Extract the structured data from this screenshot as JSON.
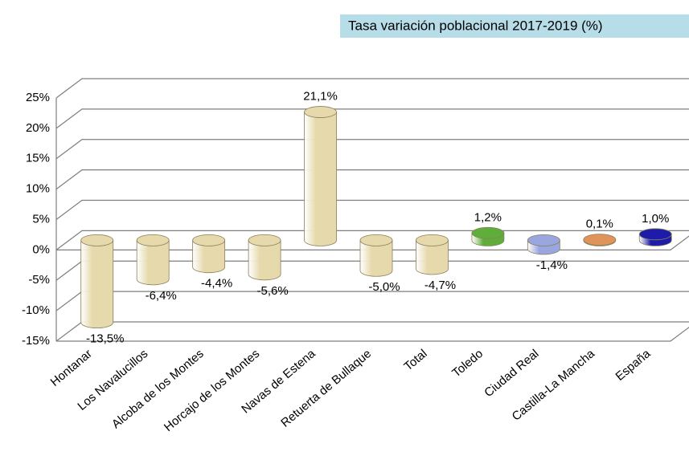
{
  "chart_data": {
    "type": "bar",
    "title": "Tasa variación poblacional 2017-2019 (%)",
    "categories": [
      "Hontanar",
      "Los Navalucillos",
      "Alcoba de los Montes",
      "Horcajo de los Montes",
      "Navas de Estena",
      "Retuerta de Bullaque",
      "Total",
      "Toledo",
      "Ciudad Real",
      "Castilla-La Mancha",
      "España"
    ],
    "values": [
      -13.5,
      -6.4,
      -4.4,
      -5.6,
      21.1,
      -5.0,
      -4.7,
      1.2,
      -1.4,
      0.1,
      1.0
    ],
    "value_labels": [
      "-13,5%",
      "-6,4%",
      "-4,4%",
      "-5,6%",
      "21,1%",
      "-5,0%",
      "-4,7%",
      "1,2%",
      "-1,4%",
      "0,1%",
      "1,0%"
    ],
    "colors": [
      "#e6d9ac",
      "#e6d9ac",
      "#e6d9ac",
      "#e6d9ac",
      "#e6d9ac",
      "#e6d9ac",
      "#e6d9ac",
      "#5fae3c",
      "#9aa6e0",
      "#e0935a",
      "#1c1ca8"
    ],
    "ylim": [
      -15,
      25
    ],
    "yticks": [
      {
        "value": -15,
        "label": "-15%"
      },
      {
        "value": -10,
        "label": "-10%"
      },
      {
        "value": -5,
        "label": "-5%"
      },
      {
        "value": 0,
        "label": "0%"
      },
      {
        "value": 5,
        "label": "5%"
      },
      {
        "value": 10,
        "label": "10%"
      },
      {
        "value": 15,
        "label": "15%"
      },
      {
        "value": 20,
        "label": "20%"
      },
      {
        "value": 25,
        "label": "25%"
      }
    ],
    "grid": true
  }
}
